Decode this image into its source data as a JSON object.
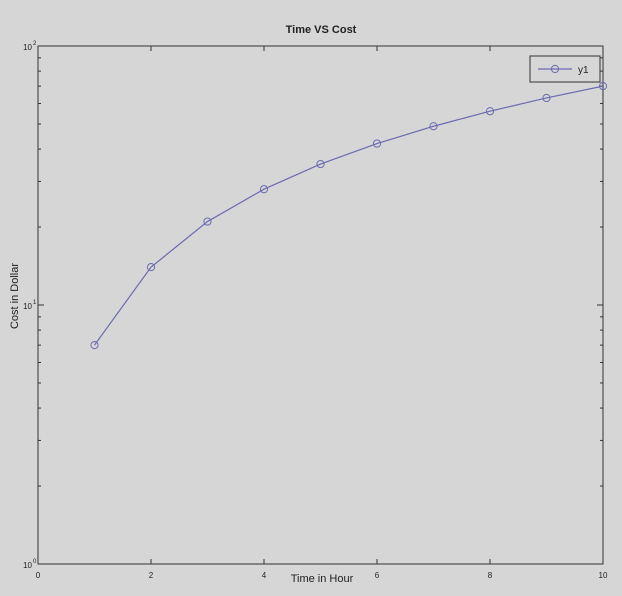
{
  "chart_data": {
    "type": "line",
    "title": "Time VS Cost",
    "xlabel": "Time in Hour",
    "ylabel": "Cost in Dollar",
    "x": [
      1,
      2,
      3,
      4,
      5,
      6,
      7,
      8,
      9,
      10
    ],
    "series": [
      {
        "name": "y1",
        "values": [
          7,
          14,
          21,
          28,
          35,
          42,
          49,
          56,
          63,
          70
        ],
        "color": "#6b6bb0",
        "marker": "circle"
      }
    ],
    "xlim": [
      0,
      10
    ],
    "ylim": [
      1,
      100
    ],
    "yscale": "log",
    "xticks": [
      "0",
      "2",
      "4",
      "6",
      "8",
      "10"
    ],
    "yticks": [
      {
        "base": "10",
        "exp": "0"
      },
      {
        "base": "10",
        "exp": "1"
      },
      {
        "base": "10",
        "exp": "2"
      }
    ],
    "grid": false,
    "legend_position": "top-right",
    "background": "#d6d6d6",
    "axes_color": "#333333"
  }
}
